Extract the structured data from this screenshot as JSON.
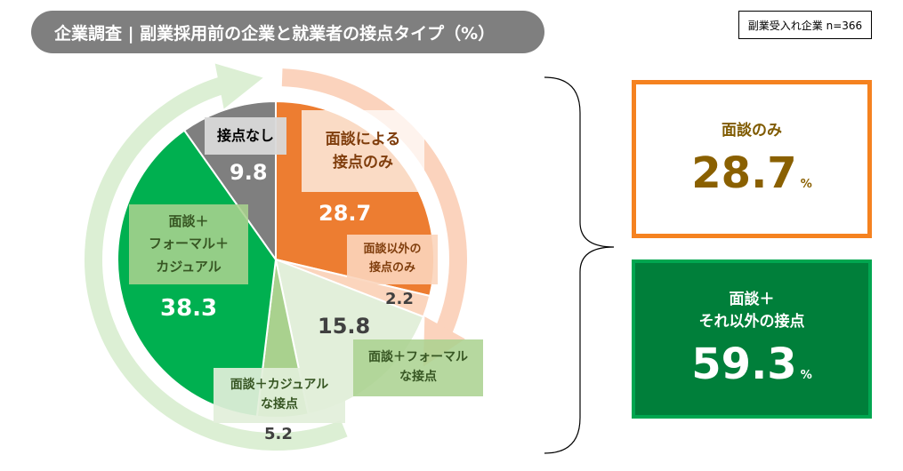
{
  "title": "企業調査 | 副業採用前の企業と就業者の接点タイプ（%）",
  "sample_note": "副業受入れ企業 n=366",
  "labels": {
    "no_contact": "接点なし",
    "interview_only": [
      "面談による",
      "接点のみ"
    ],
    "interview_other": [
      "面談以外の",
      "接点のみ"
    ],
    "interview_formal": [
      "面談＋フォーマル",
      "な接点"
    ],
    "interview_casual": [
      "面談＋カジュアル",
      "な接点"
    ],
    "interview_formal_casual": [
      "面談＋",
      "フォーマル＋",
      "カジュアル"
    ]
  },
  "summary": {
    "interview_only": {
      "label": "面談のみ",
      "value": "28.7",
      "unit": "%"
    },
    "interview_plus": {
      "label_lines": [
        "面談＋",
        "それ以外の接点"
      ],
      "value": "59.3",
      "unit": "%"
    }
  },
  "colors": {
    "orange": "#ed7d31",
    "light_orange": "#fbd5bd",
    "light_green": "#e2efda",
    "mid_green": "#a9d18e",
    "green": "#00b050",
    "gray": "#7f7f7f",
    "arrow_orange": "#fbd3bd",
    "arrow_green": "#dcefd4"
  },
  "chart_data": {
    "type": "pie",
    "title": "企業調査 | 副業採用前の企業と就業者の接点タイプ（%）",
    "slices": [
      {
        "name": "面談による接点のみ",
        "value": 28.7,
        "color": "#ed7d31"
      },
      {
        "name": "面談以外の接点のみ",
        "value": 2.2,
        "color": "#fbd5bd"
      },
      {
        "name": "面談＋フォーマルな接点",
        "value": 15.8,
        "color": "#e2efda"
      },
      {
        "name": "面談＋カジュアルな接点",
        "value": 5.2,
        "color": "#a9d18e"
      },
      {
        "name": "面談＋フォーマル＋カジュアル",
        "value": 38.3,
        "color": "#00b050"
      },
      {
        "name": "接点なし",
        "value": 9.8,
        "color": "#7f7f7f"
      }
    ],
    "value_labels": [
      "28.7",
      "2.2",
      "15.8",
      "5.2",
      "38.3",
      "9.8"
    ]
  }
}
